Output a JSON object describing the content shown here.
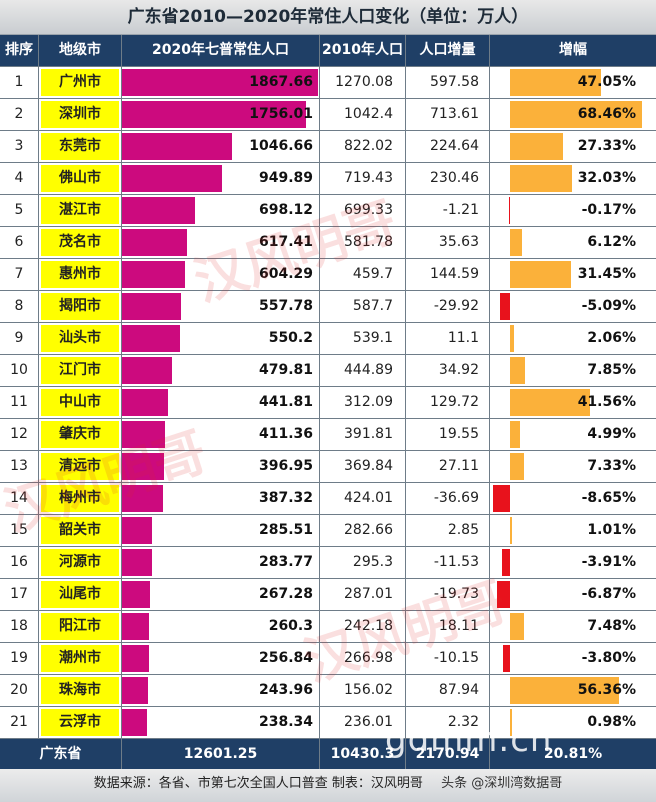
{
  "title": "广东省2010—2020年常住人口变化（单位：万人）",
  "headers": [
    "排序",
    "地级市",
    "2020年七普常住人口",
    "2010年人口",
    "人口增量",
    "增幅"
  ],
  "colors": {
    "header_bg": "#1f3f66",
    "city_bg": "#ffff00",
    "pop_bar": "#cc0a7e",
    "growth_pos": "#fbb13a",
    "growth_neg": "#e8121c"
  },
  "chart_data": {
    "type": "table",
    "title": "广东省2010—2020年常住人口变化（单位：万人）",
    "columns": [
      "排序",
      "地级市",
      "2020年七普常住人口",
      "2010年人口",
      "人口增量",
      "增幅"
    ],
    "rows": [
      {
        "rank": "1",
        "city": "广州市",
        "pop2020": "1867.66",
        "pop2010": "1270.08",
        "increase": "597.58",
        "growth": "47.05%"
      },
      {
        "rank": "2",
        "city": "深圳市",
        "pop2020": "1756.01",
        "pop2010": "1042.4",
        "increase": "713.61",
        "growth": "68.46%"
      },
      {
        "rank": "3",
        "city": "东莞市",
        "pop2020": "1046.66",
        "pop2010": "822.02",
        "increase": "224.64",
        "growth": "27.33%"
      },
      {
        "rank": "4",
        "city": "佛山市",
        "pop2020": "949.89",
        "pop2010": "719.43",
        "increase": "230.46",
        "growth": "32.03%"
      },
      {
        "rank": "5",
        "city": "湛江市",
        "pop2020": "698.12",
        "pop2010": "699.33",
        "increase": "-1.21",
        "growth": "-0.17%"
      },
      {
        "rank": "6",
        "city": "茂名市",
        "pop2020": "617.41",
        "pop2010": "581.78",
        "increase": "35.63",
        "growth": "6.12%"
      },
      {
        "rank": "7",
        "city": "惠州市",
        "pop2020": "604.29",
        "pop2010": "459.7",
        "increase": "144.59",
        "growth": "31.45%"
      },
      {
        "rank": "8",
        "city": "揭阳市",
        "pop2020": "557.78",
        "pop2010": "587.7",
        "increase": "-29.92",
        "growth": "-5.09%"
      },
      {
        "rank": "9",
        "city": "汕头市",
        "pop2020": "550.2",
        "pop2010": "539.1",
        "increase": "11.1",
        "growth": "2.06%"
      },
      {
        "rank": "10",
        "city": "江门市",
        "pop2020": "479.81",
        "pop2010": "444.89",
        "increase": "34.92",
        "growth": "7.85%"
      },
      {
        "rank": "11",
        "city": "中山市",
        "pop2020": "441.81",
        "pop2010": "312.09",
        "increase": "129.72",
        "growth": "41.56%"
      },
      {
        "rank": "12",
        "city": "肇庆市",
        "pop2020": "411.36",
        "pop2010": "391.81",
        "increase": "19.55",
        "growth": "4.99%"
      },
      {
        "rank": "13",
        "city": "清远市",
        "pop2020": "396.95",
        "pop2010": "369.84",
        "increase": "27.11",
        "growth": "7.33%"
      },
      {
        "rank": "14",
        "city": "梅州市",
        "pop2020": "387.32",
        "pop2010": "424.01",
        "increase": "-36.69",
        "growth": "-8.65%"
      },
      {
        "rank": "15",
        "city": "韶关市",
        "pop2020": "285.51",
        "pop2010": "282.66",
        "increase": "2.85",
        "growth": "1.01%"
      },
      {
        "rank": "16",
        "city": "河源市",
        "pop2020": "283.77",
        "pop2010": "295.3",
        "increase": "-11.53",
        "growth": "-3.91%"
      },
      {
        "rank": "17",
        "city": "汕尾市",
        "pop2020": "267.28",
        "pop2010": "287.01",
        "increase": "-19.73",
        "growth": "-6.87%"
      },
      {
        "rank": "18",
        "city": "阳江市",
        "pop2020": "260.3",
        "pop2010": "242.18",
        "increase": "18.11",
        "growth": "7.48%"
      },
      {
        "rank": "19",
        "city": "潮州市",
        "pop2020": "256.84",
        "pop2010": "266.98",
        "increase": "-10.15",
        "growth": "-3.80%"
      },
      {
        "rank": "20",
        "city": "珠海市",
        "pop2020": "243.96",
        "pop2010": "156.02",
        "increase": "87.94",
        "growth": "56.36%"
      },
      {
        "rank": "21",
        "city": "云浮市",
        "pop2020": "238.34",
        "pop2010": "236.01",
        "increase": "2.32",
        "growth": "0.98%"
      }
    ],
    "total": {
      "label": "广东省",
      "pop2020": "12601.25",
      "pop2010": "10430.3",
      "increase": "2170.94",
      "growth": "20.81%"
    },
    "pop_bar_max": 1867.66,
    "growth_scale_max": 70
  },
  "source": "数据来源：各省、市第七次全国人口普查    制表：汉风明哥",
  "watermarks": [
    "汉风明哥",
    "汉风明哥",
    "汉风明哥"
  ],
  "site_watermark": "gdmm.cn",
  "credit": "头条 @深圳湾数据哥"
}
